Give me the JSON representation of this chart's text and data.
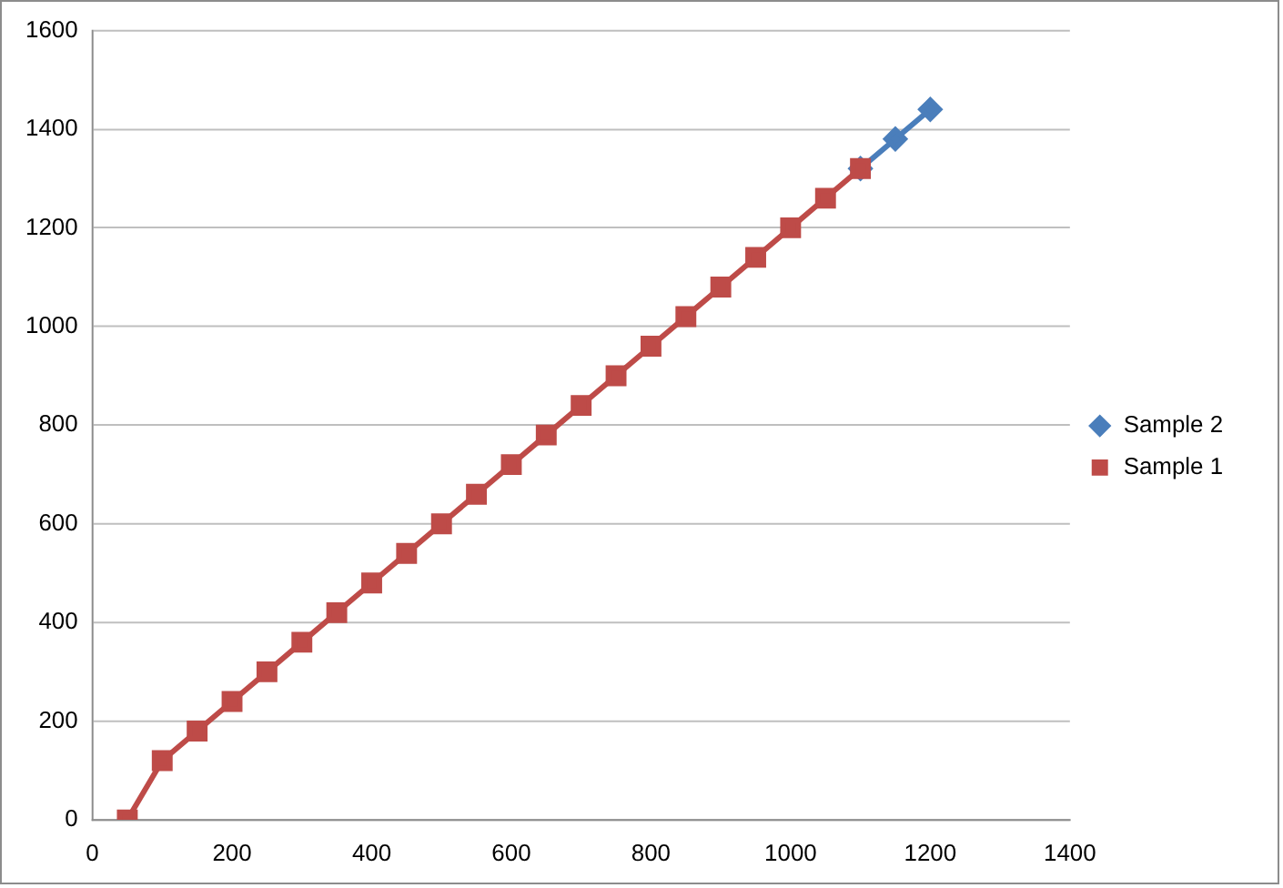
{
  "chart_data": {
    "type": "line",
    "x": [
      50,
      100,
      150,
      200,
      250,
      300,
      350,
      400,
      450,
      500,
      550,
      600,
      650,
      700,
      750,
      800,
      850,
      900,
      950,
      1000,
      1050,
      1100,
      1150,
      1200
    ],
    "series": [
      {
        "name": "Sample 2",
        "color": "#4a7ebb",
        "marker": "diamond",
        "values": [
          null,
          null,
          null,
          null,
          null,
          null,
          null,
          null,
          null,
          null,
          null,
          null,
          null,
          null,
          null,
          null,
          null,
          null,
          null,
          null,
          null,
          1320,
          1380,
          1440
        ]
      },
      {
        "name": "Sample 1",
        "color": "#be4b48",
        "marker": "square",
        "values": [
          0,
          120,
          180,
          240,
          300,
          360,
          420,
          480,
          540,
          600,
          660,
          720,
          780,
          840,
          900,
          960,
          1020,
          1080,
          1140,
          1200,
          1260,
          1320,
          null,
          null
        ]
      }
    ],
    "xlim": [
      0,
      1400
    ],
    "xticks": [
      0,
      200,
      400,
      600,
      800,
      1000,
      1200,
      1400
    ],
    "ylim": [
      0,
      1600
    ],
    "yticks": [
      0,
      200,
      400,
      600,
      800,
      1000,
      1200,
      1400,
      1600
    ],
    "grid": "y",
    "legend": "right"
  }
}
